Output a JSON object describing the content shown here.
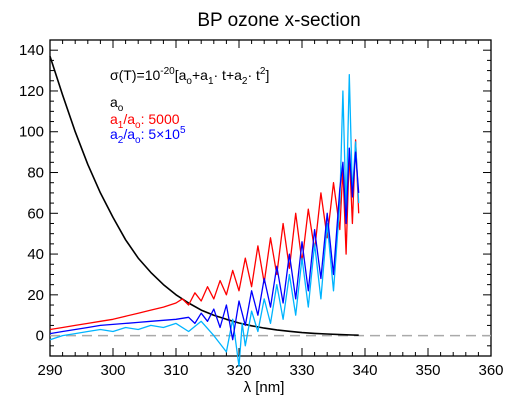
{
  "chart_data": {
    "type": "line",
    "title": "BP ozone x-section",
    "xlabel": "λ [nm]",
    "ylabel": "",
    "xlim": [
      290,
      360
    ],
    "ylim": [
      -10,
      145
    ],
    "x_ticks": [
      290,
      300,
      310,
      320,
      330,
      340,
      350,
      360
    ],
    "y_ticks": [
      0,
      20,
      40,
      60,
      80,
      100,
      120,
      140
    ],
    "grid": false,
    "formula": {
      "prefix": "σ(T)=10",
      "exponent": "-20",
      "body_open": "[a",
      "sub0": "o",
      "plus1": "+a",
      "sub1": "1",
      "dot1": "· t+a",
      "sub2": "2",
      "dot2": "· t",
      "sup2": "2",
      "close": "]"
    },
    "legend": {
      "placement": "top-left",
      "a0": {
        "main": "a",
        "sub": "o"
      },
      "a1": {
        "main1": "a",
        "sub1": "1",
        "slash": "/a",
        "sub2": "o",
        "value": ": 5000"
      },
      "a2": {
        "main1": "a",
        "sub1": "2",
        "slash": "/a",
        "sub2": "o",
        "value_prefix": ": 5×10",
        "exp": "5"
      }
    },
    "zero_line": {
      "y": 0,
      "color": "#aaaaaa",
      "style": "dashed"
    },
    "series": [
      {
        "color": "#000000",
        "x": [
          290,
          292,
          294,
          296,
          298,
          300,
          302,
          304,
          306,
          308,
          310,
          312,
          314,
          316,
          318,
          320,
          322,
          324,
          326,
          328,
          330,
          332,
          334,
          336,
          338,
          339
        ],
        "y": [
          137,
          118,
          100,
          84,
          70,
          58,
          47,
          38,
          31,
          25,
          20,
          16,
          12.5,
          10,
          8,
          6.2,
          4.8,
          3.7,
          2.8,
          2.1,
          1.5,
          1.1,
          0.8,
          0.5,
          0.3,
          0.2
        ]
      },
      {
        "color": "#ff0000",
        "x": [
          290,
          292,
          294,
          296,
          298,
          300,
          302,
          304,
          306,
          308,
          310,
          311,
          312,
          313,
          314,
          315,
          316,
          317,
          318,
          319,
          320,
          321,
          322,
          323,
          324,
          325,
          326,
          327,
          328,
          329,
          330,
          331,
          332,
          333,
          334,
          335,
          336,
          336.5,
          337,
          337.5,
          338,
          338.5,
          339
        ],
        "y": [
          3,
          4,
          5,
          6,
          7,
          8,
          9.5,
          11,
          12.5,
          14,
          16,
          18,
          15,
          21,
          17,
          24,
          18,
          27,
          20,
          32,
          22,
          38,
          24,
          44,
          26,
          48,
          30,
          55,
          33,
          60,
          36,
          62,
          42,
          70,
          48,
          75,
          52,
          82,
          40,
          90,
          55,
          96,
          60
        ]
      },
      {
        "color": "#00b4ff",
        "x": [
          290,
          292,
          294,
          296,
          298,
          300,
          302,
          304,
          306,
          308,
          310,
          312,
          314,
          316,
          318,
          319,
          320,
          320.5,
          321,
          322,
          323,
          324,
          325,
          326,
          327,
          328,
          329,
          330,
          331,
          332,
          333,
          334,
          335,
          336,
          336.5,
          337,
          337.5,
          338,
          338.5,
          339
        ],
        "y": [
          -2,
          0,
          1,
          2,
          3,
          2,
          4,
          3,
          5,
          4,
          6,
          2,
          7,
          0,
          -8,
          8,
          -15,
          6,
          -5,
          12,
          2,
          18,
          6,
          25,
          8,
          30,
          10,
          38,
          14,
          45,
          18,
          55,
          22,
          65,
          120,
          60,
          128,
          70,
          95,
          65
        ]
      },
      {
        "color": "#0000ff",
        "x": [
          290,
          292,
          294,
          296,
          298,
          300,
          302,
          304,
          306,
          308,
          310,
          312,
          313,
          314,
          315,
          316,
          317,
          318,
          319,
          320,
          321,
          322,
          323,
          324,
          325,
          326,
          327,
          328,
          329,
          330,
          331,
          332,
          333,
          334,
          335,
          336,
          336.5,
          337,
          337.5,
          338,
          338.5,
          339
        ],
        "y": [
          1,
          2,
          3,
          4,
          5,
          5.5,
          6,
          6.5,
          7,
          7.5,
          8,
          9,
          6,
          11,
          7,
          13,
          4,
          15,
          -2,
          17,
          5,
          22,
          10,
          28,
          14,
          34,
          16,
          40,
          18,
          46,
          22,
          52,
          28,
          60,
          30,
          72,
          85,
          55,
          92,
          68,
          90,
          70
        ]
      }
    ]
  }
}
